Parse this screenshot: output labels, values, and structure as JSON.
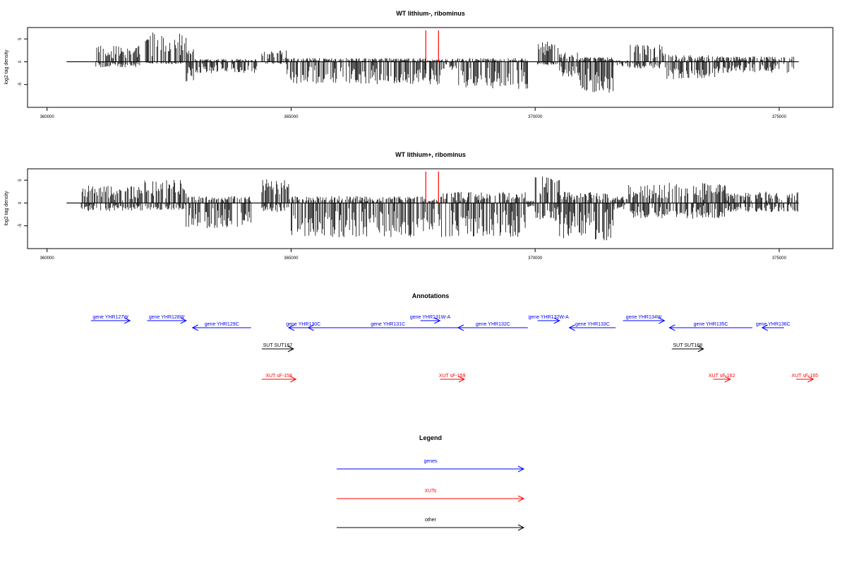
{
  "colors": {
    "gene": "#0000ff",
    "xut": "#ff0000",
    "other": "#000000",
    "bars": "#000000",
    "marker": "#ff0000"
  },
  "chart_data": [
    {
      "type": "bar",
      "title": "WT lithium-, ribominus",
      "ylabel": "log2 tag density",
      "xlim": [
        359600,
        376100
      ],
      "ylim": [
        -10,
        7.5
      ],
      "xticks": [
        360000,
        365000,
        370000,
        375000
      ],
      "xtick_labels": [
        "360000",
        "365000",
        "370000",
        "375000"
      ],
      "yticks": [
        5,
        0,
        -5
      ],
      "ytick_labels": [
        "5",
        "0",
        "-5"
      ],
      "baseline_x": [
        360400,
        375400
      ],
      "markers_x": [
        367760,
        368020
      ],
      "density_profile": [
        {
          "start": 361000,
          "end": 361900,
          "up": 3.5,
          "down": -1.2
        },
        {
          "start": 362000,
          "end": 362850,
          "up": 6.5,
          "down": -0.5
        },
        {
          "start": 362850,
          "end": 363000,
          "up": 3.0,
          "down": -4.5
        },
        {
          "start": 363000,
          "end": 364300,
          "up": 0.6,
          "down": -2.5
        },
        {
          "start": 364400,
          "end": 364900,
          "up": 2.8,
          "down": -0.5
        },
        {
          "start": 364900,
          "end": 367750,
          "up": 0.8,
          "down": -5.0
        },
        {
          "start": 367750,
          "end": 368050,
          "up": 0.5,
          "down": -5.0
        },
        {
          "start": 368050,
          "end": 368400,
          "up": 0.6,
          "down": -2.0
        },
        {
          "start": 368400,
          "end": 369850,
          "up": 0.8,
          "down": -6.0
        },
        {
          "start": 370050,
          "end": 370500,
          "up": 4.5,
          "down": -0.8
        },
        {
          "start": 370500,
          "end": 370900,
          "up": 2.0,
          "down": -3.5
        },
        {
          "start": 370900,
          "end": 371600,
          "up": 1.0,
          "down": -7.5
        },
        {
          "start": 371600,
          "end": 371900,
          "up": 0.3,
          "down": -1.0
        },
        {
          "start": 371900,
          "end": 372700,
          "up": 3.8,
          "down": -1.5
        },
        {
          "start": 372700,
          "end": 373700,
          "up": 1.5,
          "down": -3.8
        },
        {
          "start": 373700,
          "end": 375300,
          "up": 1.2,
          "down": -2.5
        }
      ]
    },
    {
      "type": "bar",
      "title": "WT lithium+, ribominus",
      "ylabel": "log2 tag density",
      "xlim": [
        359600,
        376100
      ],
      "ylim": [
        -10,
        7.5
      ],
      "xticks": [
        360000,
        365000,
        370000,
        375000
      ],
      "xtick_labels": [
        "360000",
        "365000",
        "370000",
        "375000"
      ],
      "yticks": [
        5,
        0,
        -5
      ],
      "ytick_labels": [
        "5",
        "0",
        "-5"
      ],
      "baseline_x": [
        360400,
        375400
      ],
      "markers_x": [
        367760,
        368020
      ],
      "density_profile": [
        {
          "start": 360700,
          "end": 361950,
          "up": 3.8,
          "down": -1.8
        },
        {
          "start": 362000,
          "end": 362850,
          "up": 5.2,
          "down": -1.5
        },
        {
          "start": 362850,
          "end": 364200,
          "up": 1.5,
          "down": -5.5
        },
        {
          "start": 364400,
          "end": 364950,
          "up": 5.2,
          "down": -2.0
        },
        {
          "start": 364950,
          "end": 367750,
          "up": 1.5,
          "down": -7.5
        },
        {
          "start": 367750,
          "end": 368050,
          "up": 1.0,
          "down": -6.0
        },
        {
          "start": 368050,
          "end": 369800,
          "up": 2.5,
          "down": -7.5
        },
        {
          "start": 369800,
          "end": 370000,
          "up": 0.5,
          "down": -1.0
        },
        {
          "start": 370000,
          "end": 370500,
          "up": 6.0,
          "down": -4.0
        },
        {
          "start": 370500,
          "end": 371600,
          "up": 2.5,
          "down": -8.5
        },
        {
          "start": 371600,
          "end": 371900,
          "up": 1.5,
          "down": -1.5
        },
        {
          "start": 371900,
          "end": 373900,
          "up": 4.5,
          "down": -3.5
        },
        {
          "start": 373900,
          "end": 375400,
          "up": 2.5,
          "down": -2.0
        }
      ]
    }
  ],
  "annotations": {
    "title": "Annotations",
    "features": [
      {
        "label": "gene YHR127W",
        "kind": "gene",
        "start": 360900,
        "end": 361700,
        "row": 0
      },
      {
        "label": "gene YHR128W",
        "kind": "gene",
        "start": 362050,
        "end": 362850,
        "row": 0
      },
      {
        "label": "gene YHR129C",
        "kind": "gene",
        "start": 362980,
        "end": 364180,
        "row": 1,
        "reverse": true
      },
      {
        "label": "gene YHR130C",
        "kind": "gene",
        "start": 364950,
        "end": 365550,
        "row": 1,
        "reverse": true
      },
      {
        "label": "gene YHR131C",
        "kind": "gene",
        "start": 365350,
        "end": 368620,
        "row": 1,
        "reverse": true
      },
      {
        "label": "gene YHR131W-A",
        "kind": "gene",
        "start": 367650,
        "end": 368050,
        "row": 0
      },
      {
        "label": "gene YHR132C",
        "kind": "gene",
        "start": 368420,
        "end": 369850,
        "row": 1,
        "reverse": true
      },
      {
        "label": "gene YHR132W-A",
        "kind": "gene",
        "start": 370050,
        "end": 370500,
        "row": 0
      },
      {
        "label": "gene YHR133C",
        "kind": "gene",
        "start": 370700,
        "end": 371650,
        "row": 1,
        "reverse": true
      },
      {
        "label": "gene YHR134W",
        "kind": "gene",
        "start": 371800,
        "end": 372650,
        "row": 0
      },
      {
        "label": "gene YHR135C",
        "kind": "gene",
        "start": 372750,
        "end": 374450,
        "row": 1,
        "reverse": true
      },
      {
        "label": "gene YHR136C",
        "kind": "gene",
        "start": 374650,
        "end": 375100,
        "row": 1,
        "reverse": true
      },
      {
        "label": "SUT SUT167",
        "kind": "other",
        "start": 364400,
        "end": 365050,
        "row": 2
      },
      {
        "label": "SUT SUT168",
        "kind": "other",
        "start": 372800,
        "end": 373450,
        "row": 2
      },
      {
        "label": "XUT sF-158",
        "kind": "xut",
        "start": 364400,
        "end": 365100,
        "row": 3
      },
      {
        "label": "XUT sF-159",
        "kind": "xut",
        "start": 368050,
        "end": 368550,
        "row": 3
      },
      {
        "label": "XUT sF-162",
        "kind": "xut",
        "start": 373650,
        "end": 374000,
        "row": 3
      },
      {
        "label": "XUT sF-165",
        "kind": "xut",
        "start": 375350,
        "end": 375700,
        "row": 3
      }
    ]
  },
  "legend": {
    "title": "Legend",
    "items": [
      {
        "label": "genes",
        "kind": "gene"
      },
      {
        "label": "XUTs",
        "kind": "xut"
      },
      {
        "label": "other",
        "kind": "other"
      }
    ]
  }
}
